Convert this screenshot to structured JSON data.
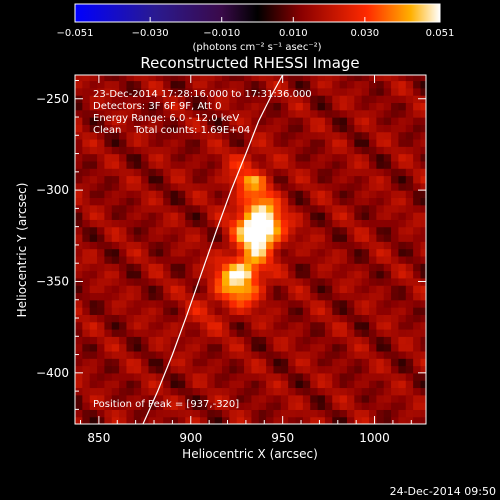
{
  "chart_data": {
    "type": "heatmap",
    "title": "Reconstructed RHESSI Image",
    "xlabel": "Heliocentric X (arcsec)",
    "ylabel": "Heliocentric Y (arcsec)",
    "xlim": [
      837,
      1028
    ],
    "ylim": [
      -428,
      -237
    ],
    "x_ticks": [
      850,
      900,
      950,
      1000
    ],
    "y_ticks": [
      -250,
      -300,
      -350,
      -400
    ],
    "x_tick_labels": [
      "850",
      "900",
      "950",
      "1000"
    ],
    "y_tick_labels": [
      "−250",
      "−300",
      "−350",
      "−400"
    ],
    "colorbar": {
      "min": -0.051,
      "max": 0.051,
      "ticks": [
        -0.051,
        -0.03,
        -0.01,
        0.01,
        0.03,
        0.051
      ],
      "tick_labels": [
        "−0.051",
        "−0.030",
        "−0.010",
        "0.010",
        "0.030",
        "0.051"
      ],
      "unit_label": "(photons cm⁻² s⁻¹ asec⁻²)"
    },
    "annotations": [
      "23-Dec-2014 17:28:16.000 to 17:31:36.000",
      "Detectors: 3F 6F 9F, Att 0",
      "Energy Range: 6.0 - 12.0 keV",
      "Clean    Total counts: 1.69E+04"
    ],
    "peak_label": "Position of Peak = [937,-320]",
    "limb_curve": {
      "x": [
        874,
        882,
        890,
        898,
        906,
        914,
        922,
        930,
        937,
        944,
        950
      ],
      "y": [
        -428,
        -410,
        -390,
        -368,
        -345,
        -322,
        -300,
        -280,
        -262,
        -248,
        -237
      ]
    },
    "sources": [
      {
        "x": 937,
        "y": -320,
        "value": 0.051
      },
      {
        "x": 926,
        "y": -350,
        "value": 0.045
      },
      {
        "x": 931,
        "y": -290,
        "value": 0.025
      },
      {
        "x": 905,
        "y": -370,
        "value": 0.018
      }
    ]
  },
  "footer": {
    "date": "24-Dec-2014 09:50"
  }
}
